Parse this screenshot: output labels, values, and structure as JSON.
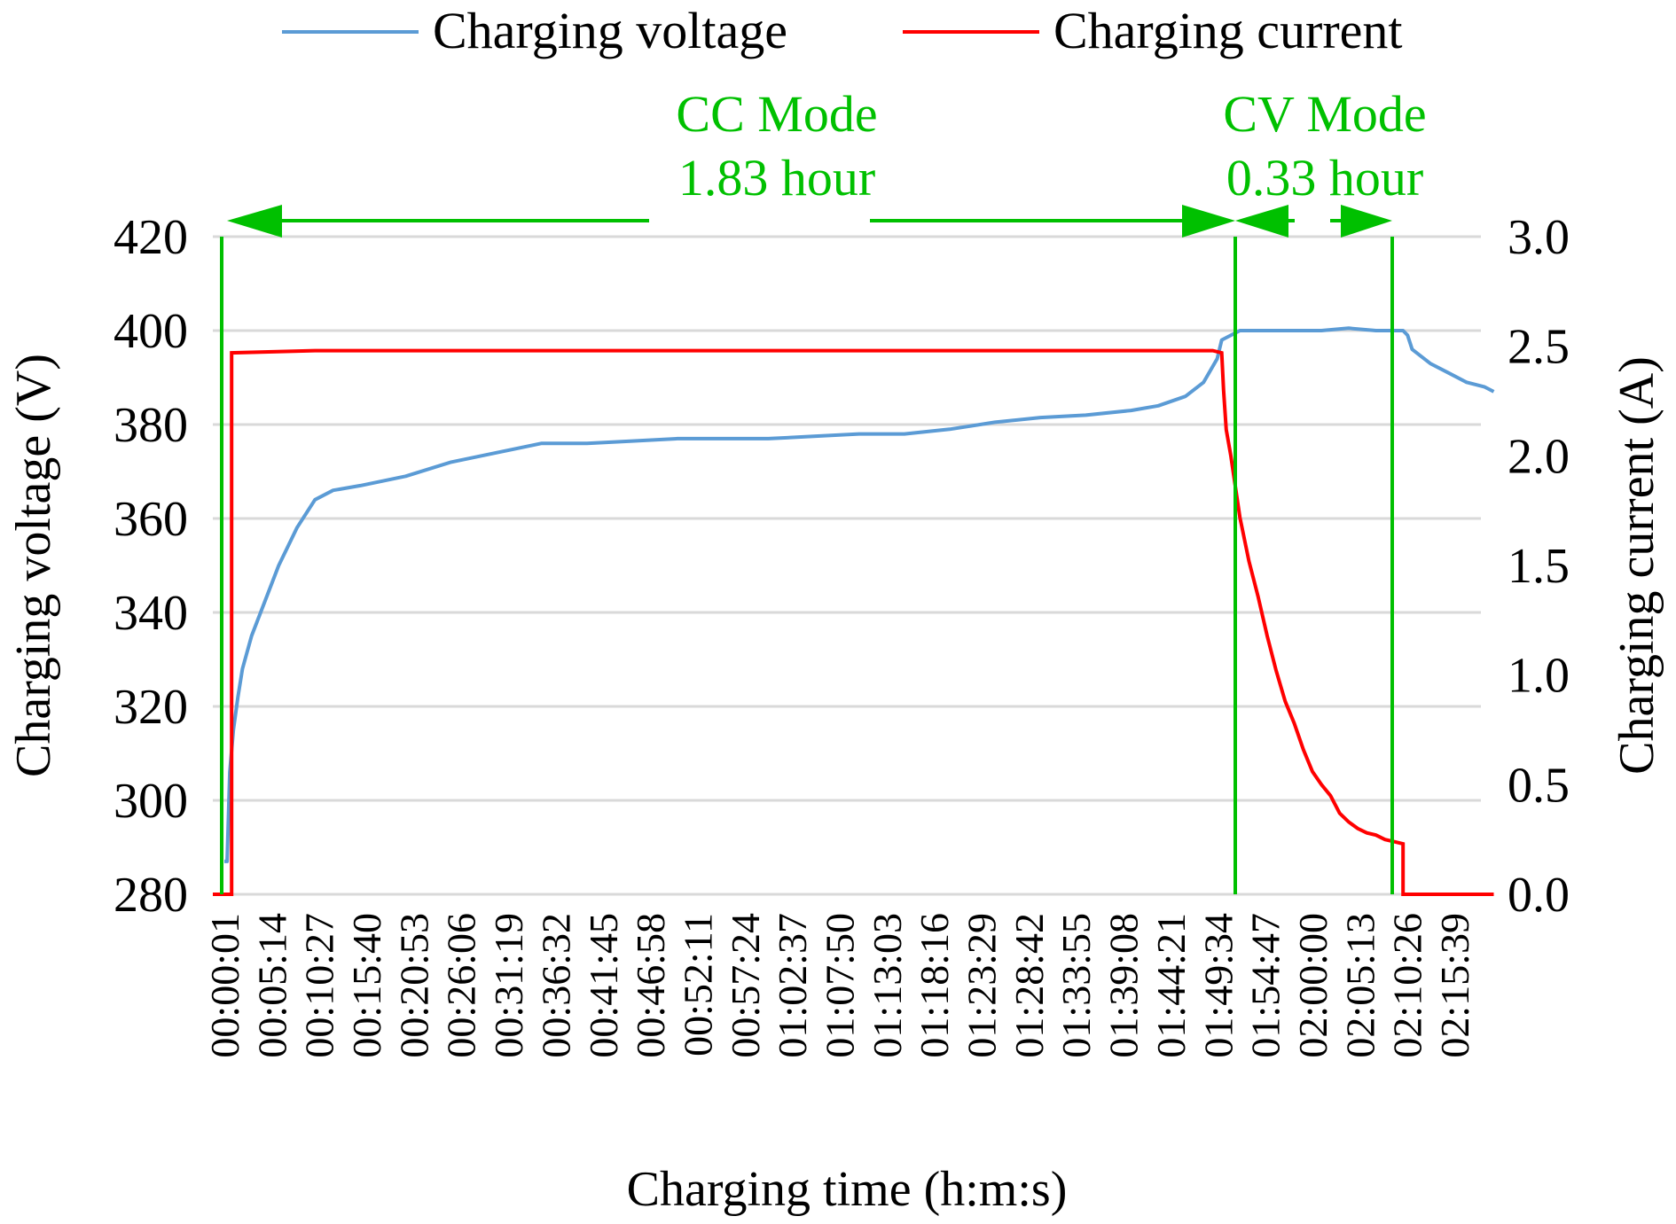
{
  "chart_data": {
    "type": "line",
    "title": "",
    "xlabel": "Charging time (h:m:s)",
    "ylabel": "Charging voltage (V)",
    "y2label": "Charging current (A)",
    "ylim": [
      280,
      420
    ],
    "y2lim": [
      0.0,
      3.0
    ],
    "yticks": [
      "280",
      "300",
      "320",
      "340",
      "360",
      "380",
      "400",
      "420"
    ],
    "y2ticks": [
      "0.0",
      "0.5",
      "1.0",
      "1.5",
      "2.0",
      "2.5",
      "3.0"
    ],
    "grid": true,
    "legend_position": "top",
    "categories": [
      "00:00:01",
      "00:05:14",
      "00:10:27",
      "00:15:40",
      "00:20:53",
      "00:26:06",
      "00:31:19",
      "00:36:32",
      "00:41:45",
      "00:46:58",
      "00:52:11",
      "00:57:24",
      "01:02:37",
      "01:07:50",
      "01:13:03",
      "01:18:16",
      "01:23:29",
      "01:28:42",
      "01:33:55",
      "01:39:08",
      "01:44:21",
      "01:49:34",
      "01:54:47",
      "02:00:00",
      "02:05:13",
      "02:10:26",
      "02:15:39"
    ],
    "series": [
      {
        "name": "Charging voltage",
        "axis": "left",
        "color": "#5b9bd5",
        "x_minutes": [
          0,
          0.3,
          0.6,
          1.0,
          1.5,
          2,
          3,
          4,
          5,
          6,
          7,
          8,
          9,
          10,
          12,
          15,
          20,
          25,
          30,
          35,
          40,
          45,
          50,
          55,
          60,
          65,
          70,
          75,
          80,
          85,
          90,
          95,
          100,
          103,
          106,
          108,
          109.5,
          110,
          112,
          115,
          118,
          121,
          124,
          127,
          129,
          130,
          130.5,
          131,
          133,
          135,
          137,
          139,
          140
        ],
        "values": [
          287,
          287,
          306,
          315,
          322,
          328,
          335,
          340,
          345,
          350,
          354,
          358,
          361,
          364,
          366,
          367,
          369,
          372,
          374,
          376,
          376,
          376.5,
          377,
          377,
          377,
          377.5,
          378,
          378,
          379,
          380.5,
          381.5,
          382,
          383,
          384,
          386,
          389,
          394,
          398,
          400,
          400,
          400,
          400,
          400.5,
          400,
          400,
          400,
          399,
          396,
          393,
          391,
          389,
          388,
          387
        ]
      },
      {
        "name": "Charging current",
        "axis": "right",
        "color": "#ff0000",
        "x_minutes": [
          0,
          0.8,
          0.8,
          10,
          30,
          60,
          90,
          109,
          110,
          110.2,
          110.5,
          111,
          112,
          113,
          114,
          115,
          116,
          117,
          118,
          119,
          120,
          121,
          122,
          123,
          124,
          125,
          126,
          127,
          128,
          129,
          130,
          130,
          140
        ],
        "values": [
          0.0,
          0.0,
          2.47,
          2.48,
          2.48,
          2.48,
          2.48,
          2.48,
          2.47,
          2.3,
          2.12,
          2.0,
          1.72,
          1.52,
          1.36,
          1.18,
          1.02,
          0.88,
          0.78,
          0.66,
          0.56,
          0.5,
          0.45,
          0.37,
          0.33,
          0.3,
          0.28,
          0.27,
          0.25,
          0.24,
          0.23,
          0.0,
          0.0
        ]
      }
    ],
    "annotations": [
      {
        "text": "CC Mode",
        "subtext": "1.83 hour",
        "color": "#00c000",
        "from": "00:00:01",
        "to": "01:50:00"
      },
      {
        "text": "CV Mode",
        "subtext": "0.33 hour",
        "color": "#00c000",
        "from": "01:50:00",
        "to": "02:10:00"
      }
    ],
    "mode_boundaries_minutes": [
      0.5,
      110,
      130
    ]
  },
  "legend": {
    "voltage_label": "Charging voltage",
    "current_label": "Charging current"
  },
  "annotations": {
    "cc_title": "CC Mode",
    "cc_duration": "1.83 hour",
    "cv_title": "CV Mode",
    "cv_duration": "0.33 hour"
  },
  "axes": {
    "x_title": "Charging time (h:m:s)",
    "y_left_title": "Charging voltage (V)",
    "y_right_title": "Charging current (A)"
  },
  "colors": {
    "voltage": "#5b9bd5",
    "current": "#ff0000",
    "annotation": "#00c000",
    "grid": "#d9d9d9",
    "text": "#000000"
  }
}
